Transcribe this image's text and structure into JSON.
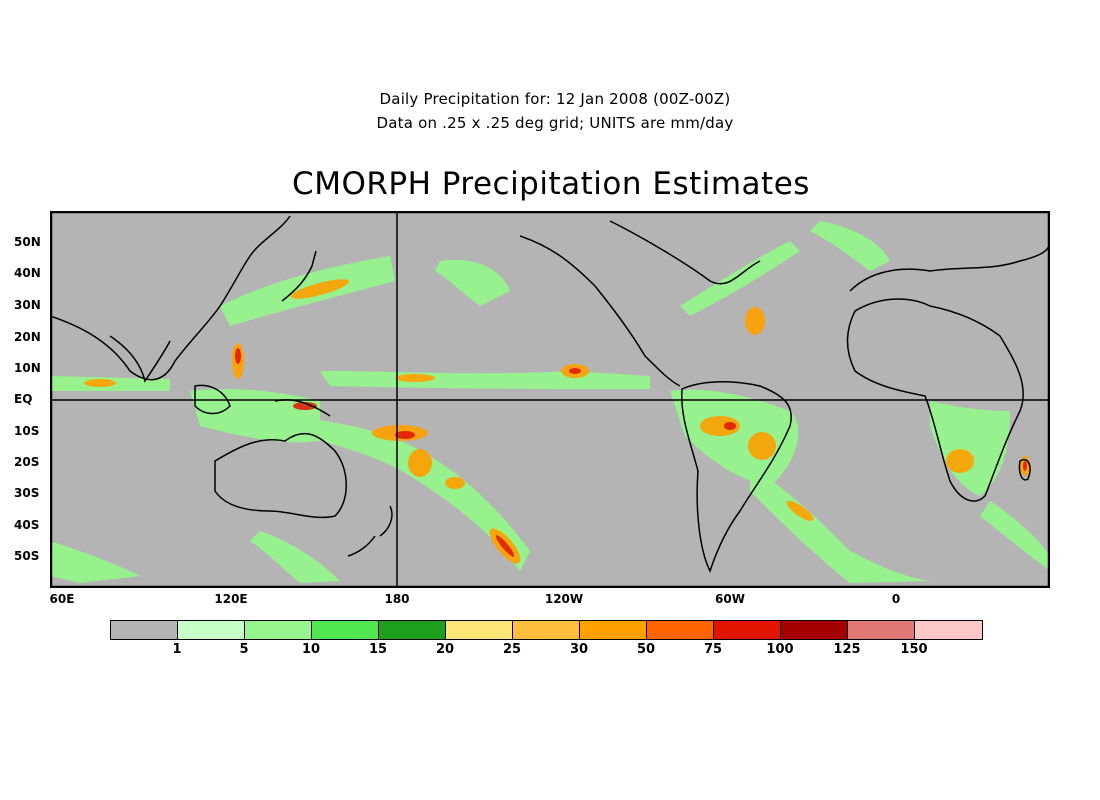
{
  "subtitle1": "Daily Precipitation for: 12 Jan 2008 (00Z-00Z)",
  "subtitle2": "Data on .25 x .25 deg grid; UNITS are mm/day",
  "title": "CMORPH Precipitation Estimates",
  "map": {
    "background_color": "#b4b4b4",
    "lat_labels": [
      "50N",
      "40N",
      "30N",
      "20N",
      "10N",
      "EQ",
      "10S",
      "20S",
      "30S",
      "40S",
      "50S"
    ],
    "lon_labels": [
      "60E",
      "120E",
      "180",
      "120W",
      "60W",
      "0"
    ]
  },
  "colorbar": {
    "colors": [
      "#b4b4b4",
      "#c8ffc8",
      "#96f58c",
      "#50e650",
      "#1ea01e",
      "#ffe678",
      "#ffbe3c",
      "#ffa000",
      "#ff6400",
      "#e11400",
      "#a50000",
      "#e17878",
      "#ffc8c8"
    ],
    "labels": [
      "1",
      "5",
      "10",
      "15",
      "20",
      "25",
      "30",
      "50",
      "75",
      "100",
      "125",
      "150"
    ]
  }
}
